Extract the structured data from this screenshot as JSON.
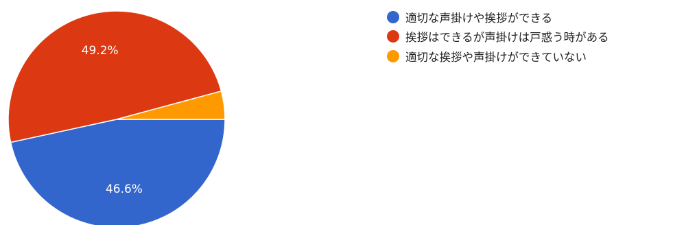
{
  "chart_data": {
    "type": "pie",
    "title": "",
    "legend_position": "top-right",
    "start_angle_deg": 0,
    "direction": "clockwise",
    "slices": [
      {
        "label": "適切な声掛けや挨拶ができる",
        "value": 46.6,
        "display": "46.6%",
        "color": "#3366cc"
      },
      {
        "label": "挨拶はできるが声掛けは戸惑う時がある",
        "value": 49.2,
        "display": "49.2%",
        "color": "#dc3912"
      },
      {
        "label": "適切な挨拶や声掛けができていない",
        "value": 4.2,
        "display": "",
        "color": "#ff9900"
      }
    ]
  }
}
